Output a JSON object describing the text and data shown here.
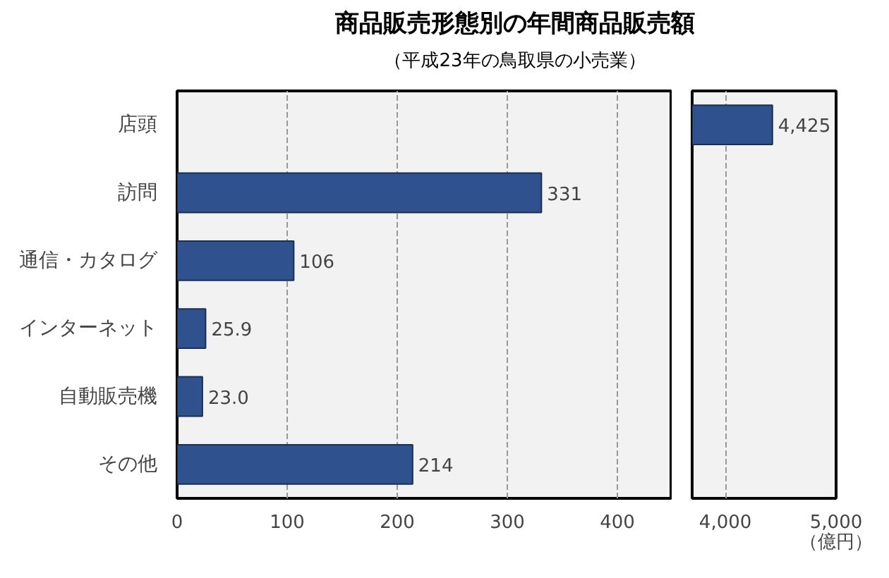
{
  "chart_data": [
    {
      "type": "bar",
      "orientation": "horizontal",
      "title": "商品販売形態別の年間商品販売額",
      "subtitle": "（平成23年の鳥取県の小売業）",
      "categories": [
        "店頭",
        "訪問",
        "通信・カタログ",
        "インターネット",
        "自動販売機",
        "その他"
      ],
      "values": [
        null,
        331,
        106,
        25.9,
        23.0,
        214
      ],
      "value_labels": [
        null,
        "331",
        "106",
        "25.9",
        "23.0",
        "214"
      ],
      "color": "#2f528f",
      "xlim": [
        0,
        450
      ],
      "xticks": [
        0,
        100,
        200,
        300,
        400
      ],
      "grid": "x"
    },
    {
      "type": "bar",
      "orientation": "horizontal",
      "xlabel": "（億円）",
      "categories": [
        null,
        null,
        null,
        null,
        null,
        null
      ],
      "values": [
        4425,
        null,
        null,
        null,
        null,
        null
      ],
      "value_labels": [
        "4,425",
        null,
        null,
        null,
        null,
        null
      ],
      "color": "#2f528f",
      "xlim": [
        3700,
        5000
      ],
      "xticks": [
        {
          "value": 4000,
          "label": "4,000"
        },
        {
          "value": 5000,
          "label": "5,000"
        }
      ],
      "tick_labels": "x",
      "grid": "x"
    }
  ]
}
